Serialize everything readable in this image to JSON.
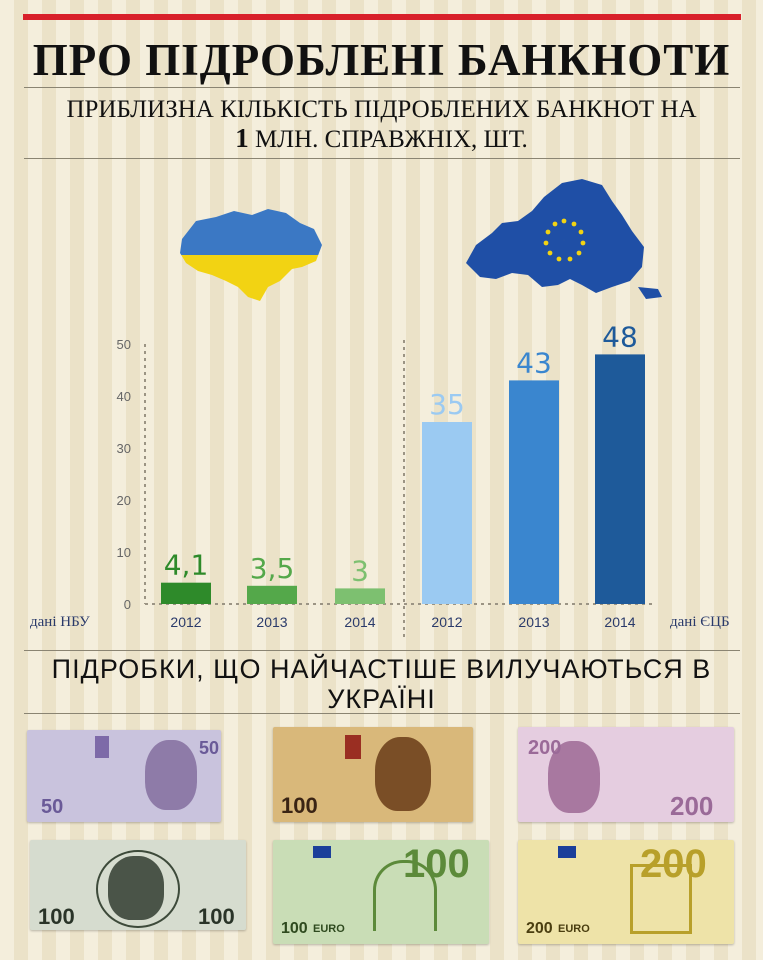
{
  "header": {
    "title": "ПРО ПІДРОБЛЕНІ БАНКНОТИ",
    "subtitle_line1": "ПРИБЛИЗНА КІЛЬКІСТЬ ПІДРОБЛЕНИХ БАНКНОТ НА",
    "subtitle_line2_number": "1",
    "subtitle_line2_text": "МЛН. СПРАВЖНІХ, ШТ."
  },
  "maps": {
    "ukraine_icon": "ukraine-map-icon",
    "eu_icon": "eu-map-icon",
    "colors": {
      "ukraine_top": "#3b78c4",
      "ukraine_bottom": "#f2d313",
      "eu": "#1f4fa6",
      "eu_stars": "#f2d313"
    }
  },
  "chart_data": {
    "type": "bar",
    "ylim": [
      0,
      50
    ],
    "yticks": [
      "0",
      "10",
      "20",
      "30",
      "40",
      "50"
    ],
    "groups": [
      {
        "source_label": "дані НБУ",
        "categories": [
          "2012",
          "2013",
          "2014"
        ],
        "values": [
          4.1,
          3.5,
          3
        ],
        "value_labels": [
          "4,1",
          "3,5",
          "3"
        ],
        "colors": [
          "#2e8a2a",
          "#54a84a",
          "#7dc070"
        ]
      },
      {
        "source_label": "дані ЄЦБ",
        "categories": [
          "2012",
          "2013",
          "2014"
        ],
        "values": [
          35,
          43,
          48
        ],
        "value_labels": [
          "35",
          "43",
          "48"
        ],
        "colors": [
          "#9bcaf2",
          "#3a86cf",
          "#1e5a9a"
        ]
      }
    ]
  },
  "section2": {
    "title_line1": "ПІДРОБКИ, ЩО НАЙЧАСТІШЕ ВИЛУЧАЮТЬСЯ В",
    "title_line2": "УКРАЇНІ"
  },
  "banknotes": [
    {
      "name": "hryvnia-50",
      "label": "50",
      "currency": "UAH",
      "bg": "#c9c3dd",
      "accent": "#7d6aa8"
    },
    {
      "name": "hryvnia-100",
      "label": "100",
      "currency": "UAH",
      "bg": "#d9b87a",
      "accent": "#8a5a2a"
    },
    {
      "name": "hryvnia-200",
      "label": "200",
      "currency": "UAH",
      "bg": "#e5cde0",
      "accent": "#b07aa8"
    },
    {
      "name": "dollar-100",
      "label": "100",
      "currency": "USD",
      "bg": "#d6dccf",
      "accent": "#3d4a3a"
    },
    {
      "name": "euro-100",
      "label": "100",
      "currency": "EURO",
      "bg": "#c9ddb6",
      "accent": "#5c8a3a"
    },
    {
      "name": "euro-200",
      "label": "200",
      "currency": "EURO",
      "bg": "#eee3a8",
      "accent": "#b8a02a"
    }
  ]
}
